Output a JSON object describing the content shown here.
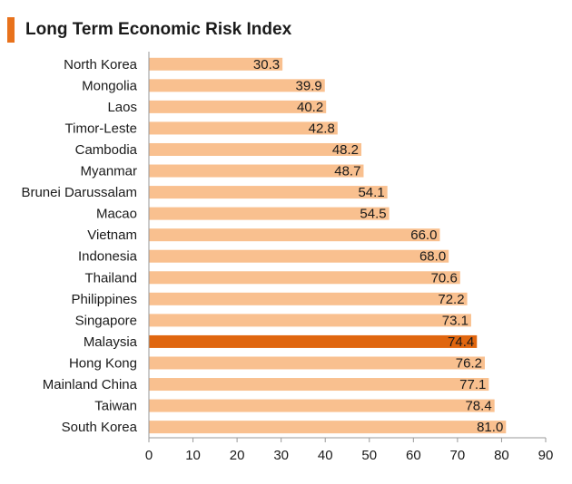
{
  "chart_data": {
    "type": "bar",
    "orientation": "horizontal",
    "title": "Long Term Economic Risk Index",
    "xlabel": "",
    "ylabel": "",
    "xlim": [
      0,
      90
    ],
    "xticks": [
      0,
      10,
      20,
      30,
      40,
      50,
      60,
      70,
      80,
      90
    ],
    "grid": false,
    "categories": [
      "North Korea",
      "Mongolia",
      "Laos",
      "Timor-Leste",
      "Cambodia",
      "Myanmar",
      "Brunei Darussalam",
      "Macao",
      "Vietnam",
      "Indonesia",
      "Thailand",
      "Philippines",
      "Singapore",
      "Malaysia",
      "Hong Kong",
      "Mainland China",
      "Taiwan",
      "South Korea"
    ],
    "values": [
      30.3,
      39.9,
      40.2,
      42.8,
      48.2,
      48.7,
      54.1,
      54.5,
      66.0,
      68.0,
      70.6,
      72.2,
      73.1,
      74.4,
      76.2,
      77.1,
      78.4,
      81.0
    ],
    "value_labels": [
      "30.3",
      "39.9",
      "40.2",
      "42.8",
      "48.2",
      "48.7",
      "54.1",
      "54.5",
      "66.0",
      "68.0",
      "70.6",
      "72.2",
      "73.1",
      "74.4",
      "76.2",
      "77.1",
      "78.4",
      "81.0"
    ],
    "highlight_category": "Malaysia",
    "colors": {
      "bar": "#f9c08f",
      "highlight": "#e0660f",
      "accent": "#e8721c",
      "axis": "#999999"
    }
  }
}
